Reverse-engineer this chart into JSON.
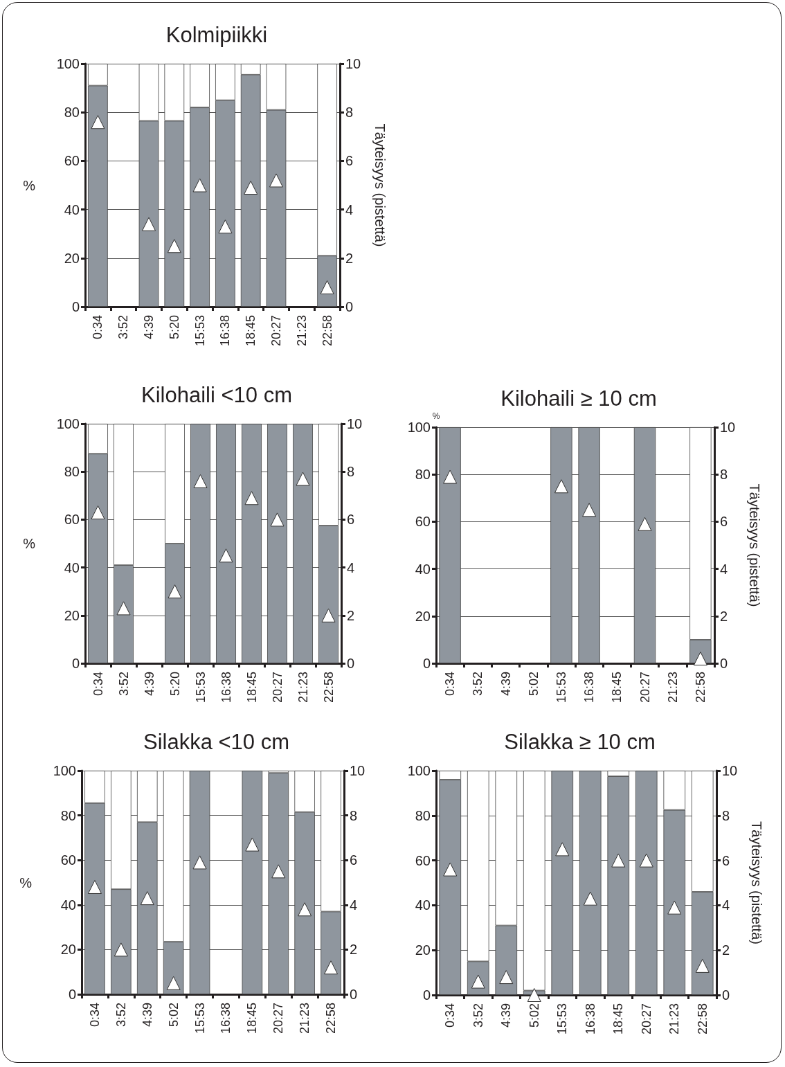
{
  "chart_data": [
    {
      "type": "bar",
      "title": "Kolmipiikki",
      "ylabel": "%",
      "y2label": "Täyteisyys (pistettä)",
      "categories": [
        "0:34",
        "3:52",
        "4:39",
        "5:20",
        "15:53",
        "16:38",
        "18:45",
        "20:27",
        "21:23",
        "22:58"
      ],
      "stacked": true,
      "grid": "y",
      "ylim": [
        0,
        100
      ],
      "yticks": [
        0,
        20,
        40,
        60,
        80,
        100
      ],
      "y2lim": [
        0,
        10
      ],
      "y2ticks": [
        0,
        2,
        4,
        6,
        8,
        10
      ],
      "series": [
        {
          "color": "#8f969e",
          "values": [
            91,
            null,
            76.5,
            76.5,
            82,
            85,
            95.5,
            81,
            null,
            21
          ]
        },
        {
          "color": "#ffffff",
          "values": [
            9,
            null,
            23.5,
            23.5,
            18,
            15,
            4.5,
            19,
            null,
            79
          ]
        },
        {
          "type": "scatter",
          "axis": "y2",
          "marker": "triangle",
          "color": "#ffffff",
          "values": [
            7.6,
            null,
            3.4,
            2.5,
            5.0,
            3.3,
            4.9,
            5.2,
            null,
            0.8
          ]
        }
      ]
    },
    {
      "type": "bar",
      "title": "Kilohaili <10 cm",
      "ylabel": "%",
      "categories": [
        "0:34",
        "3:52",
        "4:39",
        "5:20",
        "15:53",
        "16:38",
        "18:45",
        "20:27",
        "21:23",
        "22:58"
      ],
      "stacked": true,
      "grid": "y",
      "ylim": [
        0,
        100
      ],
      "yticks": [
        0,
        20,
        40,
        60,
        80,
        100
      ],
      "y2lim": [
        0,
        10
      ],
      "y2ticks": [
        0,
        2,
        4,
        6,
        8,
        10
      ],
      "series": [
        {
          "color": "#8f969e",
          "values": [
            87.5,
            41,
            null,
            50,
            100,
            100,
            100,
            100,
            100,
            57.5
          ]
        },
        {
          "color": "#ffffff",
          "values": [
            12.5,
            59,
            null,
            50,
            null,
            null,
            null,
            null,
            null,
            42.5
          ]
        },
        {
          "type": "scatter",
          "axis": "y2",
          "marker": "triangle",
          "color": "#ffffff",
          "values": [
            6.3,
            2.3,
            null,
            3.0,
            7.6,
            4.5,
            6.9,
            6.0,
            7.7,
            2.0
          ]
        }
      ]
    },
    {
      "type": "bar",
      "title": "Kilohaili ≥ 10 cm",
      "ylabel": "%",
      "y2label": "Täyteisyys (pistettä)",
      "categories": [
        "0:34",
        "3:52",
        "4:39",
        "5:02",
        "15:53",
        "16:38",
        "18:45",
        "20:27",
        "21:23",
        "22:58"
      ],
      "stacked": true,
      "grid": "y",
      "ylim": [
        0,
        100
      ],
      "yticks": [
        0,
        20,
        40,
        60,
        80,
        100
      ],
      "y2lim": [
        0,
        10
      ],
      "y2ticks": [
        0,
        2,
        4,
        6,
        8,
        10
      ],
      "series": [
        {
          "color": "#8f969e",
          "values": [
            100,
            null,
            null,
            null,
            100,
            100,
            null,
            100,
            null,
            10
          ]
        },
        {
          "color": "#ffffff",
          "values": [
            null,
            null,
            null,
            null,
            null,
            null,
            null,
            null,
            null,
            90
          ]
        },
        {
          "type": "scatter",
          "axis": "y2",
          "marker": "triangle",
          "color": "#ffffff",
          "values": [
            7.9,
            null,
            null,
            null,
            7.5,
            6.5,
            null,
            5.9,
            null,
            0.2
          ]
        }
      ]
    },
    {
      "type": "bar",
      "title": "Silakka <10 cm",
      "ylabel": "%",
      "categories": [
        "0:34",
        "3:52",
        "4:39",
        "5:02",
        "15:53",
        "16:38",
        "18:45",
        "20:27",
        "21:23",
        "22:58"
      ],
      "stacked": true,
      "grid": "y",
      "ylim": [
        0,
        100
      ],
      "yticks": [
        0,
        20,
        40,
        60,
        80,
        100
      ],
      "y2lim": [
        0,
        10
      ],
      "y2ticks": [
        0,
        2,
        4,
        6,
        8,
        10
      ],
      "series": [
        {
          "color": "#8f969e",
          "values": [
            85.5,
            47,
            77,
            23.5,
            100,
            null,
            100,
            99,
            81.5,
            37
          ]
        },
        {
          "color": "#ffffff",
          "values": [
            14.5,
            53,
            23,
            76.5,
            null,
            null,
            null,
            1,
            18.5,
            63
          ]
        },
        {
          "type": "scatter",
          "axis": "y2",
          "marker": "triangle",
          "color": "#ffffff",
          "values": [
            4.8,
            2.0,
            4.3,
            0.5,
            5.9,
            null,
            6.7,
            5.5,
            3.8,
            1.2
          ]
        }
      ]
    },
    {
      "type": "bar",
      "title": "Silakka ≥ 10 cm",
      "y2label": "Täyteisyys (pistettä)",
      "categories": [
        "0:34",
        "3:52",
        "4:39",
        "5:02",
        "15:53",
        "16:38",
        "18:45",
        "20:27",
        "21:23",
        "22:58"
      ],
      "stacked": true,
      "grid": "y",
      "ylim": [
        0,
        100
      ],
      "yticks": [
        0,
        20,
        40,
        60,
        80,
        100
      ],
      "y2lim": [
        0,
        10
      ],
      "y2ticks": [
        0,
        2,
        4,
        6,
        8,
        10
      ],
      "series": [
        {
          "color": "#8f969e",
          "values": [
            96,
            15,
            31,
            2,
            100,
            100,
            97.5,
            100,
            82.5,
            46
          ]
        },
        {
          "color": "#ffffff",
          "values": [
            4,
            85,
            69,
            98,
            null,
            null,
            2.5,
            null,
            17.5,
            54
          ]
        },
        {
          "type": "scatter",
          "axis": "y2",
          "marker": "triangle",
          "color": "#ffffff",
          "values": [
            5.6,
            0.6,
            0.8,
            0,
            6.5,
            4.3,
            6.0,
            6.0,
            3.9,
            1.3
          ]
        }
      ]
    }
  ]
}
